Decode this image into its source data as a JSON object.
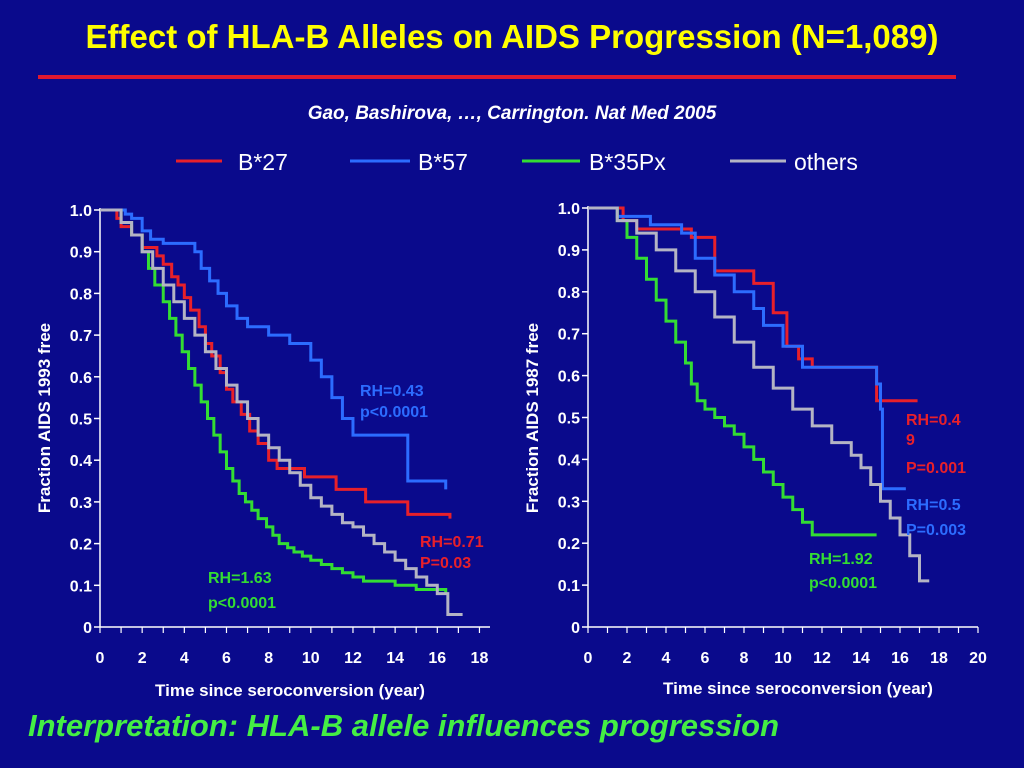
{
  "title": "Effect of HLA-B Alleles on AIDS Progression (N=1,089)",
  "citation": "Gao, Bashirova, …, Carrington.  Nat Med 2005",
  "interpretation": "Interpretation: HLA-B allele influences progression",
  "colors": {
    "background": "#0a0a8c",
    "title": "#ffff00",
    "rule": "#e01830",
    "B27": "#e8202a",
    "B57": "#2c6cff",
    "B35Px": "#33dd33",
    "others": "#b4b4c4"
  },
  "legend": [
    {
      "label": "B*27",
      "color": "#e8202a"
    },
    {
      "label": "B*57",
      "color": "#2c6cff"
    },
    {
      "label": "B*35Px",
      "color": "#33dd33"
    },
    {
      "label": "others",
      "color": "#b4b4c4"
    }
  ],
  "chart_data": [
    {
      "type": "line",
      "ylabel": "Fraction  AIDS 1993 free",
      "xlabel": "Time since seroconversion (year)",
      "xlim": [
        0,
        18.5
      ],
      "ylim": [
        0,
        1
      ],
      "xticks": [
        "0",
        "2",
        "4",
        "6",
        "8",
        "10",
        "12",
        "14",
        "16",
        "18"
      ],
      "yticks": [
        "0",
        "0.1",
        "0.2",
        "0.3",
        "0.4",
        "0.5",
        "0.6",
        "0.7",
        "0.8",
        "0.9",
        "1.0"
      ],
      "series": [
        {
          "name": "B*27",
          "x": [
            0,
            0.8,
            1,
            1.5,
            2,
            2.7,
            3,
            3.4,
            3.7,
            4,
            4.3,
            4.7,
            5,
            5.3,
            5.7,
            6,
            6.3,
            6.7,
            7.1,
            7.5,
            8,
            8.4,
            9.7,
            11.2,
            12.6,
            14.6,
            16.6
          ],
          "y": [
            1,
            0.98,
            0.96,
            0.94,
            0.91,
            0.89,
            0.87,
            0.84,
            0.82,
            0.79,
            0.76,
            0.72,
            0.68,
            0.65,
            0.61,
            0.57,
            0.54,
            0.51,
            0.47,
            0.44,
            0.4,
            0.38,
            0.36,
            0.33,
            0.3,
            0.27,
            0.26
          ]
        },
        {
          "name": "B*57",
          "x": [
            0,
            1.2,
            1.5,
            2,
            2.4,
            3,
            4.5,
            4.8,
            5.2,
            5.6,
            6,
            6.5,
            7,
            8,
            9,
            10,
            10.5,
            11,
            11.5,
            12,
            14.6,
            16.4
          ],
          "y": [
            1,
            0.99,
            0.98,
            0.95,
            0.93,
            0.92,
            0.9,
            0.86,
            0.83,
            0.8,
            0.77,
            0.74,
            0.72,
            0.7,
            0.68,
            0.64,
            0.6,
            0.55,
            0.5,
            0.46,
            0.35,
            0.33
          ]
        },
        {
          "name": "B*35Px",
          "x": [
            0,
            1,
            1.5,
            2,
            2.3,
            2.6,
            3,
            3.3,
            3.6,
            3.9,
            4.2,
            4.5,
            4.8,
            5.1,
            5.4,
            5.7,
            6,
            6.3,
            6.6,
            6.9,
            7.2,
            7.5,
            7.9,
            8.2,
            8.5,
            8.9,
            9.2,
            9.6,
            10,
            10.5,
            11,
            11.5,
            12,
            12.5,
            14,
            15,
            16.4
          ],
          "y": [
            1,
            0.97,
            0.94,
            0.9,
            0.86,
            0.82,
            0.78,
            0.74,
            0.7,
            0.66,
            0.62,
            0.58,
            0.54,
            0.5,
            0.46,
            0.42,
            0.38,
            0.35,
            0.32,
            0.3,
            0.28,
            0.26,
            0.24,
            0.22,
            0.2,
            0.19,
            0.18,
            0.17,
            0.16,
            0.15,
            0.14,
            0.13,
            0.12,
            0.11,
            0.1,
            0.09,
            0.08
          ]
        },
        {
          "name": "others",
          "x": [
            0,
            1,
            1.5,
            2,
            2.5,
            3,
            3.5,
            4,
            4.5,
            5,
            5.5,
            6,
            6.5,
            7,
            7.5,
            8,
            8.5,
            9,
            9.5,
            10,
            10.5,
            11,
            11.5,
            12,
            12.5,
            13,
            13.5,
            14,
            14.5,
            15,
            15.5,
            16,
            16.5,
            17.2
          ],
          "y": [
            1,
            0.97,
            0.94,
            0.9,
            0.86,
            0.82,
            0.78,
            0.74,
            0.7,
            0.66,
            0.62,
            0.58,
            0.54,
            0.5,
            0.46,
            0.43,
            0.4,
            0.37,
            0.34,
            0.31,
            0.29,
            0.27,
            0.25,
            0.24,
            0.22,
            0.2,
            0.18,
            0.16,
            0.14,
            0.12,
            0.1,
            0.08,
            0.03,
            0.03
          ]
        }
      ],
      "annotations": [
        {
          "text": "RH=0.43",
          "color": "#2c6cff"
        },
        {
          "text": "p<0.0001",
          "color": "#2c6cff"
        },
        {
          "text": "RH=0.71",
          "color": "#e8202a"
        },
        {
          "text": "P=0.03",
          "color": "#e8202a"
        },
        {
          "text": "RH=1.63",
          "color": "#33dd33"
        },
        {
          "text": "p<0.0001",
          "color": "#33dd33"
        }
      ]
    },
    {
      "type": "line",
      "ylabel": "Fraction  AIDS 1987 free",
      "xlabel": "Time since seroconversion (year)",
      "xlim": [
        0,
        20
      ],
      "ylim": [
        0,
        1
      ],
      "xticks": [
        "0",
        "2",
        "4",
        "6",
        "8",
        "10",
        "12",
        "14",
        "16",
        "18",
        "20"
      ],
      "yticks": [
        "0",
        "0.1",
        "0.2",
        "0.3",
        "0.4",
        "0.5",
        "0.6",
        "0.7",
        "0.8",
        "0.9",
        "1.0"
      ],
      "series": [
        {
          "name": "B*27",
          "x": [
            0,
            1.8,
            2.5,
            5.3,
            6.5,
            8.5,
            9.5,
            10.2,
            10.8,
            11.5,
            14.8,
            16.9
          ],
          "y": [
            1,
            0.97,
            0.95,
            0.93,
            0.85,
            0.82,
            0.75,
            0.67,
            0.64,
            0.62,
            0.54,
            0.54
          ]
        },
        {
          "name": "B*57",
          "x": [
            0,
            1.5,
            3.2,
            4.8,
            5.5,
            6.5,
            7.5,
            8.5,
            9,
            10,
            11,
            14.8,
            15,
            15.1,
            16.3
          ],
          "y": [
            1,
            0.98,
            0.96,
            0.94,
            0.88,
            0.84,
            0.8,
            0.76,
            0.72,
            0.67,
            0.62,
            0.58,
            0.52,
            0.33,
            0.33
          ]
        },
        {
          "name": "B*35Px",
          "x": [
            0,
            1.5,
            2,
            2.5,
            3,
            3.5,
            4,
            4.5,
            5,
            5.3,
            5.6,
            6,
            6.5,
            7,
            7.5,
            8,
            8.5,
            9,
            9.5,
            10,
            10.5,
            11,
            11.5,
            12,
            14.8
          ],
          "y": [
            1,
            0.97,
            0.93,
            0.88,
            0.83,
            0.78,
            0.73,
            0.68,
            0.63,
            0.58,
            0.54,
            0.52,
            0.5,
            0.48,
            0.46,
            0.43,
            0.4,
            0.37,
            0.34,
            0.31,
            0.28,
            0.25,
            0.22,
            0.22,
            0.22
          ]
        },
        {
          "name": "others",
          "x": [
            0,
            1.5,
            2.5,
            3.5,
            4.5,
            5.5,
            6.5,
            7.5,
            8.5,
            9.5,
            10.5,
            11.5,
            12.5,
            13.5,
            14,
            14.5,
            15,
            15.5,
            16,
            16.5,
            17,
            17.5
          ],
          "y": [
            1,
            0.97,
            0.94,
            0.9,
            0.85,
            0.8,
            0.74,
            0.68,
            0.62,
            0.57,
            0.52,
            0.48,
            0.44,
            0.41,
            0.38,
            0.34,
            0.3,
            0.26,
            0.22,
            0.17,
            0.11,
            0.11
          ]
        }
      ],
      "annotations": [
        {
          "text": "RH=0.4",
          "color": "#e8202a"
        },
        {
          "text": "9",
          "color": "#e8202a"
        },
        {
          "text": "P=0.001",
          "color": "#e8202a"
        },
        {
          "text": "RH=0.5",
          "color": "#2c6cff"
        },
        {
          "text": "P=0.003",
          "color": "#2c6cff"
        },
        {
          "text": "RH=1.92",
          "color": "#33dd33"
        },
        {
          "text": "p<0.0001",
          "color": "#33dd33"
        }
      ]
    }
  ]
}
